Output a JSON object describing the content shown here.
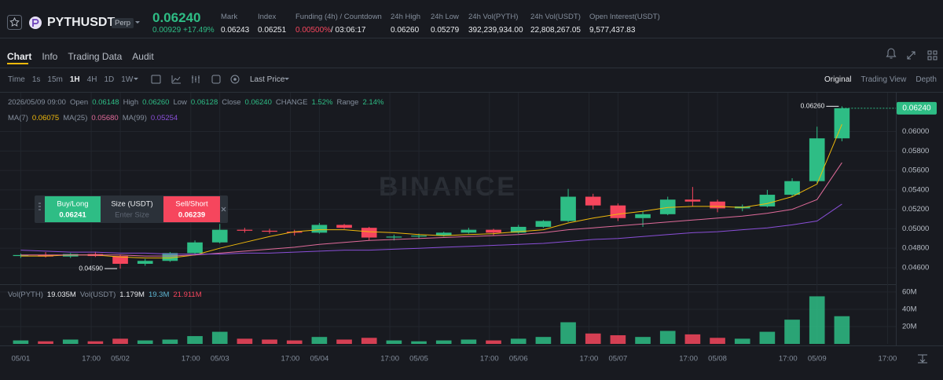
{
  "header": {
    "symbol": "PYTHUSDT",
    "badge": "Perp",
    "last_price": "0.06240",
    "change": "0.00929",
    "change_pct": "+17.49%",
    "stats": [
      {
        "label": "Mark",
        "value": "0.06243"
      },
      {
        "label": "Index",
        "value": "0.06251"
      },
      {
        "label": "Funding (4h) / Countdown",
        "value": "0.00500%",
        "extra": "/ 03:06:17"
      },
      {
        "label": "24h High",
        "value": "0.06260"
      },
      {
        "label": "24h Low",
        "value": "0.05279"
      },
      {
        "label": "24h Vol(PYTH)",
        "value": "392,239,934.00"
      },
      {
        "label": "24h Vol(USDT)",
        "value": "22,808,267.05"
      },
      {
        "label": "Open Interest(USDT)",
        "value": "9,577,437.83"
      }
    ]
  },
  "tabs": [
    "Chart",
    "Info",
    "Trading Data",
    "Audit"
  ],
  "toolbar": {
    "intervals": [
      "Time",
      "1s",
      "15m",
      "1H",
      "4H",
      "1D",
      "1W"
    ],
    "price_type": "Last Price",
    "views": [
      "Original",
      "Trading View",
      "Depth"
    ]
  },
  "order_panel": {
    "buy": "Buy/Long",
    "buy_price": "0.06241",
    "size": "Size (USDT)",
    "size_placeholder": "Enter Size",
    "sell": "Sell/Short",
    "sell_price": "0.06239"
  },
  "chart_data": {
    "type": "candlestick",
    "watermark": "BINANCE",
    "info": {
      "date": "2026/05/09 09:00",
      "items": [
        {
          "label": "Open",
          "value": "0.06148"
        },
        {
          "label": "High",
          "value": "0.06260"
        },
        {
          "label": "Low",
          "value": "0.06128"
        },
        {
          "label": "Close",
          "value": "0.06240"
        },
        {
          "label": "CHANGE",
          "value": "1.52%"
        },
        {
          "label": "Range",
          "value": "2.14%"
        }
      ]
    },
    "ma_legend": [
      "0.06075",
      "0.05680",
      "0.05254"
    ],
    "vol_legend": [
      {
        "label": "Vol(PYTH)",
        "value": "19.035M"
      },
      {
        "label": "Vol(USDT)",
        "value": "1.179M"
      },
      {
        "label": "",
        "value": "19.3M"
      },
      {
        "label": "",
        "value": "21.911M"
      }
    ],
    "x": [
      "05/01 00:00",
      "05/01 06:00",
      "05/01 12:00",
      "05/01 18:00",
      "05/02 00:00",
      "05/02 06:00",
      "05/02 12:00",
      "05/02 18:00",
      "05/03 00:00",
      "05/03 06:00",
      "05/03 12:00",
      "05/03 18:00",
      "05/04 00:00",
      "05/04 06:00",
      "05/04 12:00",
      "05/04 18:00",
      "05/05 00:00",
      "05/05 06:00",
      "05/05 12:00",
      "05/05 18:00",
      "05/06 00:00",
      "05/06 06:00",
      "05/06 12:00",
      "05/06 18:00",
      "05/07 00:00",
      "05/07 06:00",
      "05/07 12:00",
      "05/07 18:00",
      "05/08 00:00",
      "05/08 06:00",
      "05/08 12:00",
      "05/08 18:00",
      "05/09 00:00",
      "05/09 06:00"
    ],
    "open": [
      0.0472,
      0.0473,
      0.04715,
      0.0474,
      0.0472,
      0.0464,
      0.0467,
      0.0475,
      0.0486,
      0.0499,
      0.0498,
      0.0497,
      0.0496,
      0.0504,
      0.0501,
      0.0491,
      0.0492,
      0.0493,
      0.0496,
      0.0499,
      0.0496,
      0.0502,
      0.0508,
      0.0533,
      0.0524,
      0.0511,
      0.0515,
      0.053,
      0.0528,
      0.0521,
      0.0523,
      0.0535,
      0.0549,
      0.0593
    ],
    "high": [
      0.04745,
      0.0476,
      0.0475,
      0.04765,
      0.04735,
      0.0469,
      0.0476,
      0.0488,
      0.0505,
      0.0501,
      0.05,
      0.0499,
      0.0506,
      0.0505,
      0.0502,
      0.0494,
      0.0495,
      0.0497,
      0.0501,
      0.05,
      0.0504,
      0.0509,
      0.0541,
      0.0536,
      0.0526,
      0.0518,
      0.0533,
      0.0543,
      0.053,
      0.0525,
      0.054,
      0.0552,
      0.0605,
      0.0626
    ],
    "low": [
      0.047,
      0.04705,
      0.047,
      0.0471,
      0.0459,
      0.0462,
      0.0466,
      0.0474,
      0.0485,
      0.0496,
      0.0495,
      0.0493,
      0.0495,
      0.05,
      0.0488,
      0.0488,
      0.049,
      0.0492,
      0.0495,
      0.0493,
      0.0495,
      0.0501,
      0.0507,
      0.052,
      0.0508,
      0.0502,
      0.0514,
      0.0523,
      0.0517,
      0.0518,
      0.0522,
      0.0533,
      0.0547,
      0.059
    ],
    "close": [
      0.0473,
      0.04715,
      0.0474,
      0.0472,
      0.0464,
      0.0467,
      0.0475,
      0.0486,
      0.0499,
      0.0498,
      0.0497,
      0.0496,
      0.0504,
      0.0501,
      0.0491,
      0.0492,
      0.0493,
      0.0496,
      0.0499,
      0.0496,
      0.0502,
      0.0508,
      0.0533,
      0.0524,
      0.0511,
      0.0515,
      0.053,
      0.0528,
      0.0521,
      0.0523,
      0.0535,
      0.0549,
      0.0593,
      0.0624
    ],
    "up_color": "#2ebd85",
    "down_color": "#f6465d",
    "series": [
      {
        "name": "MA(7)",
        "color": "#f0b90b",
        "values": [
          0.0472,
          0.0472,
          0.0473,
          0.0473,
          0.0471,
          0.047,
          0.047,
          0.0473,
          0.048,
          0.0486,
          0.0492,
          0.0497,
          0.0499,
          0.0499,
          0.0497,
          0.0496,
          0.0494,
          0.0493,
          0.0494,
          0.0495,
          0.0497,
          0.0499,
          0.0506,
          0.0511,
          0.0515,
          0.0518,
          0.0522,
          0.0523,
          0.0523,
          0.0522,
          0.0526,
          0.0533,
          0.0546,
          0.06075
        ]
      },
      {
        "name": "MA(25)",
        "color": "#e06b9a",
        "values": [
          0.0473,
          0.0473,
          0.0473,
          0.0473,
          0.0473,
          0.0472,
          0.0472,
          0.0473,
          0.0475,
          0.0477,
          0.0479,
          0.0481,
          0.0484,
          0.0486,
          0.0488,
          0.0489,
          0.049,
          0.0491,
          0.0492,
          0.0493,
          0.0494,
          0.0496,
          0.0499,
          0.0501,
          0.0503,
          0.0505,
          0.0507,
          0.0509,
          0.0511,
          0.0513,
          0.0516,
          0.052,
          0.053,
          0.0568
        ]
      },
      {
        "name": "MA(99)",
        "color": "#8a4fd8",
        "values": [
          0.0478,
          0.0477,
          0.0476,
          0.0476,
          0.0475,
          0.0475,
          0.0474,
          0.0474,
          0.0474,
          0.0475,
          0.0475,
          0.0476,
          0.0477,
          0.0478,
          0.0478,
          0.0479,
          0.048,
          0.0481,
          0.0482,
          0.0483,
          0.0484,
          0.0485,
          0.0487,
          0.0489,
          0.049,
          0.0492,
          0.0494,
          0.0496,
          0.0497,
          0.0499,
          0.0501,
          0.0504,
          0.0508,
          0.05254
        ]
      }
    ],
    "xlim": [
      "04/30 19:00",
      "05/09 19:00"
    ],
    "xticks": [
      {
        "value": "05/01 00:00",
        "label": "05/01"
      },
      {
        "value": "05/01 17:00",
        "label": "17:00"
      },
      {
        "value": "05/02 00:00",
        "label": "05/02"
      },
      {
        "value": "05/02 17:00",
        "label": "17:00"
      },
      {
        "value": "05/03 00:00",
        "label": "05/03"
      },
      {
        "value": "05/03 17:00",
        "label": "17:00"
      },
      {
        "value": "05/04 00:00",
        "label": "05/04"
      },
      {
        "value": "05/04 17:00",
        "label": "17:00"
      },
      {
        "value": "05/05 00:00",
        "label": "05/05"
      },
      {
        "value": "05/05 17:00",
        "label": "17:00"
      },
      {
        "value": "05/06 00:00",
        "label": "05/06"
      },
      {
        "value": "05/06 17:00",
        "label": "17:00"
      },
      {
        "value": "05/07 00:00",
        "label": "05/07"
      },
      {
        "value": "05/07 17:00",
        "label": "17:00"
      },
      {
        "value": "05/08 00:00",
        "label": "05/08"
      },
      {
        "value": "05/08 17:00",
        "label": "17:00"
      },
      {
        "value": "05/09 00:00",
        "label": "05/09"
      },
      {
        "value": "05/09 17:00",
        "label": "17:00"
      }
    ],
    "ylim": [
      0.0443,
      0.064
    ],
    "yticks": [
      {
        "value": 0.046,
        "label": "0.04600"
      },
      {
        "value": 0.048,
        "label": "0.04800"
      },
      {
        "value": 0.05,
        "label": "0.05000"
      },
      {
        "value": 0.052,
        "label": "0.05200"
      },
      {
        "value": 0.054,
        "label": "0.05400"
      },
      {
        "value": 0.056,
        "label": "0.05600"
      },
      {
        "value": 0.058,
        "label": "0.05800"
      },
      {
        "value": 0.06,
        "label": "0.06000"
      }
    ],
    "grid": true,
    "max_label": "0.06260",
    "min_label": "0.04590",
    "last_label": "0.06240",
    "volume": {
      "values": [
        4000000,
        3000000,
        5000000,
        3000000,
        6000000,
        4000000,
        5000000,
        9000000,
        14000000,
        6000000,
        5000000,
        4000000,
        8000000,
        5000000,
        7000000,
        4000000,
        3000000,
        4000000,
        5000000,
        4000000,
        6000000,
        8000000,
        25000000,
        12000000,
        10000000,
        8000000,
        15000000,
        11000000,
        7000000,
        6000000,
        14000000,
        28000000,
        55000000,
        32000000
      ],
      "ylim": [
        0,
        69000000
      ],
      "yticks": [
        {
          "value": 20000000,
          "label": "20M"
        },
        {
          "value": 40000000,
          "label": "40M"
        },
        {
          "value": 60000000,
          "label": "60M"
        }
      ]
    }
  }
}
